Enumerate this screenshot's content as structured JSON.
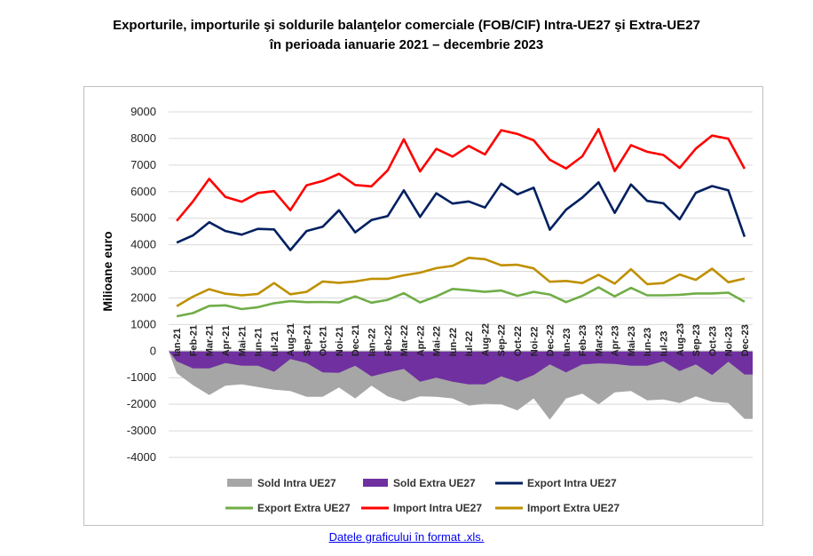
{
  "title_line1": "Exporturile, importurile şi soldurile balanţelor comerciale (FOB/CIF) Intra-UE27 şi Extra-UE27",
  "title_line2": "în perioada ianuarie 2021 – decembrie 2023",
  "link_text": "Datele graficului în format .xls.",
  "chart_data": {
    "type": "line",
    "ylabel": "Milioane euro",
    "ylim": [
      -4000,
      9000
    ],
    "yticks": [
      9000,
      8000,
      7000,
      6000,
      5000,
      4000,
      3000,
      2000,
      1000,
      0,
      -1000,
      -2000,
      -3000,
      -4000
    ],
    "grid": "horizontal",
    "legend_position": "bottom",
    "categories": [
      "Ian-21",
      "Feb-21",
      "Mar-21",
      "Apr-21",
      "Mai-21",
      "Iun-21",
      "Iul-21",
      "Aug-21",
      "Sep-21",
      "Oct-21",
      "Noi-21",
      "Dec-21",
      "Ian-22",
      "Feb-22",
      "Mar-22",
      "Apr-22",
      "Mai-22",
      "Iun-22",
      "Iul-22",
      "Aug-22",
      "Sep-22",
      "Oct-22",
      "Noi-22",
      "Dec-22",
      "Ian-23",
      "Feb-23",
      "Mar-23",
      "Apr-23",
      "Mai-23",
      "Iun-23",
      "Iul-23",
      "Aug-23",
      "Sep-23",
      "Oct-23",
      "Noi-23",
      "Dec-23"
    ],
    "series": [
      {
        "name": "Sold Intra UE27",
        "kind": "area",
        "color": "#a6a6a6",
        "values": [
          -830,
          -1280,
          -1650,
          -1300,
          -1250,
          -1350,
          -1450,
          -1500,
          -1720,
          -1720,
          -1370,
          -1780,
          -1300,
          -1700,
          -1900,
          -1700,
          -1720,
          -1780,
          -2050,
          -1980,
          -2000,
          -2230,
          -1780,
          -2580,
          -1780,
          -1600,
          -2000,
          -1550,
          -1500,
          -1850,
          -1820,
          -1950,
          -1700,
          -1900,
          -1950,
          -2550
        ]
      },
      {
        "name": "Sold Extra UE27",
        "kind": "area",
        "color": "#7030a0",
        "values": [
          -380,
          -650,
          -650,
          -450,
          -550,
          -550,
          -780,
          -300,
          -450,
          -800,
          -820,
          -550,
          -950,
          -800,
          -670,
          -1150,
          -1000,
          -1150,
          -1250,
          -1250,
          -950,
          -1150,
          -900,
          -500,
          -800,
          -500,
          -460,
          -480,
          -550,
          -550,
          -380,
          -750,
          -500,
          -900,
          -400,
          -880
        ]
      },
      {
        "name": "Export Intra UE27",
        "kind": "line",
        "color": "#002060",
        "values": [
          4080,
          4350,
          4850,
          4520,
          4380,
          4600,
          4580,
          3800,
          4520,
          4680,
          5300,
          4470,
          4930,
          5080,
          6050,
          5050,
          5940,
          5550,
          5630,
          5400,
          6300,
          5900,
          6150,
          4570,
          5320,
          5780,
          6350,
          5200,
          6270,
          5650,
          5560,
          4960,
          5960,
          6210,
          6050,
          4300
        ]
      },
      {
        "name": "Export Extra UE27",
        "kind": "line",
        "color": "#70ad47",
        "values": [
          1310,
          1430,
          1700,
          1720,
          1580,
          1650,
          1800,
          1880,
          1840,
          1850,
          1830,
          2060,
          1820,
          1930,
          2180,
          1830,
          2060,
          2340,
          2290,
          2230,
          2280,
          2080,
          2230,
          2130,
          1840,
          2080,
          2400,
          2060,
          2380,
          2100,
          2100,
          2120,
          2170,
          2170,
          2200,
          1860
        ]
      },
      {
        "name": "Import Intra UE27",
        "kind": "line",
        "color": "#ff0000",
        "values": [
          4900,
          5630,
          6480,
          5800,
          5620,
          5950,
          6020,
          5300,
          6240,
          6400,
          6670,
          6250,
          6200,
          6800,
          7970,
          6760,
          7610,
          7320,
          7720,
          7400,
          8310,
          8170,
          7930,
          7200,
          6870,
          7330,
          8350,
          6770,
          7750,
          7500,
          7380,
          6890,
          7620,
          8110,
          7990,
          6860
        ]
      },
      {
        "name": "Import Extra UE27",
        "kind": "line",
        "color": "#bf9000",
        "values": [
          1690,
          2050,
          2330,
          2160,
          2100,
          2150,
          2560,
          2140,
          2230,
          2620,
          2570,
          2620,
          2720,
          2720,
          2850,
          2950,
          3120,
          3210,
          3510,
          3460,
          3230,
          3250,
          3110,
          2610,
          2640,
          2560,
          2870,
          2540,
          3080,
          2520,
          2560,
          2880,
          2680,
          3100,
          2590,
          2730
        ]
      }
    ]
  }
}
